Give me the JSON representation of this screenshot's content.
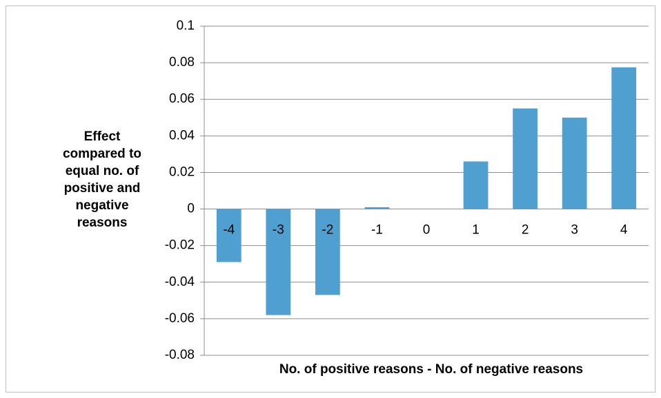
{
  "chart_data": {
    "type": "bar",
    "x_label": "No. of positive reasons - No. of negative reasons",
    "y_label": "Effect compared to equal no. of positive and negative reasons",
    "categories": [
      "-4",
      "-3",
      "-2",
      "-1",
      "0",
      "1",
      "2",
      "3",
      "4"
    ],
    "values": [
      -0.029,
      -0.058,
      -0.047,
      0.001,
      0,
      0.026,
      0.055,
      0.05,
      0.0775
    ],
    "color": "#4f9fd0",
    "ylim": [
      -0.08,
      0.1
    ],
    "yticks": [
      -0.08,
      -0.06,
      -0.04,
      -0.02,
      0,
      0.02,
      0.04,
      0.06,
      0.08,
      0.1
    ],
    "grid": true
  }
}
